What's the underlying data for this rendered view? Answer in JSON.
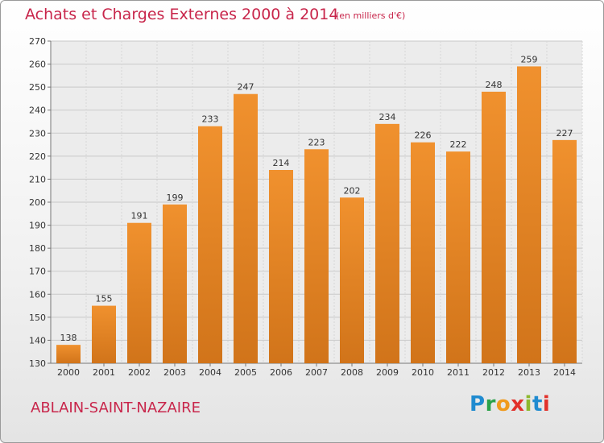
{
  "chart_data": {
    "type": "bar",
    "title": "Achats et Charges Externes 2000 à 2014",
    "subtitle": "(en milliers d'€)",
    "categories": [
      "2000",
      "2001",
      "2002",
      "2003",
      "2004",
      "2005",
      "2006",
      "2007",
      "2008",
      "2009",
      "2010",
      "2011",
      "2012",
      "2013",
      "2014"
    ],
    "values": [
      138,
      155,
      191,
      199,
      233,
      247,
      214,
      223,
      202,
      234,
      226,
      222,
      248,
      259,
      227
    ],
    "ylim": [
      130,
      270
    ],
    "yticks": [
      130,
      140,
      150,
      160,
      170,
      180,
      190,
      200,
      210,
      220,
      230,
      240,
      250,
      260,
      270
    ],
    "grid": true,
    "bar_color": "#f0912e",
    "bar_color_dark": "#d1741a"
  },
  "footer": {
    "city": "ABLAIN-SAINT-NAZAIRE",
    "logo": [
      "P",
      "r",
      "o",
      "x",
      "i",
      "t",
      "i"
    ]
  }
}
